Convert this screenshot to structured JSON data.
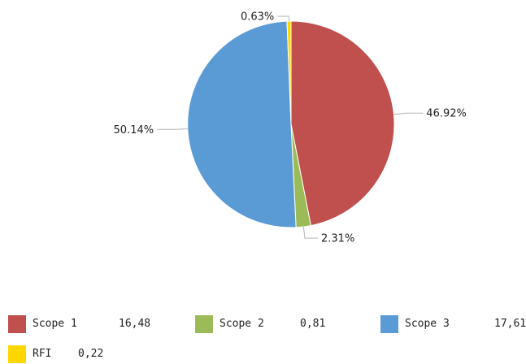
{
  "chart_data": {
    "type": "pie",
    "title": "",
    "slices": [
      {
        "name": "Scope 1",
        "value": 16.48,
        "value_label": "16,48",
        "percent_label": "46.92%",
        "color": "#c0504d"
      },
      {
        "name": "Scope 2",
        "value": 0.81,
        "value_label": "0,81",
        "percent_label": "2.31%",
        "color": "#9bbb59"
      },
      {
        "name": "Scope 3",
        "value": 17.61,
        "value_label": "17,61",
        "percent_label": "50.14%",
        "color": "#5b9bd5"
      },
      {
        "name": "RFI",
        "value": 0.22,
        "value_label": "0,22",
        "percent_label": "0.63%",
        "color": "#ffd700"
      }
    ],
    "start_angle_deg": 0,
    "direction": "clockwise",
    "legend_position": "bottom"
  }
}
